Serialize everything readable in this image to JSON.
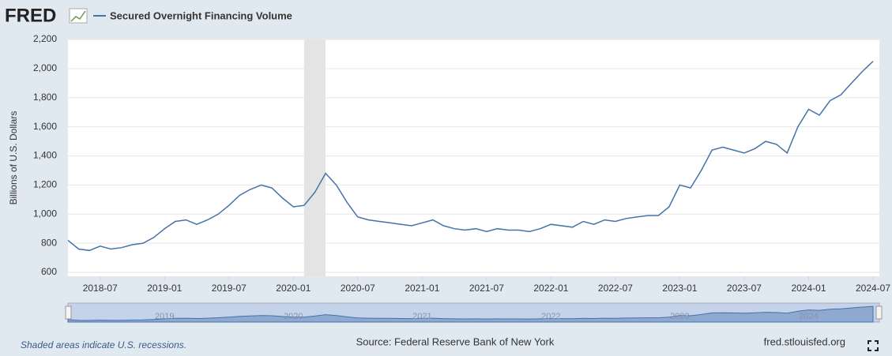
{
  "logo": "FRED",
  "chart_data": {
    "type": "line",
    "y_label": "Billions of U.S. Dollars",
    "x": [
      "2018-04",
      "2018-05",
      "2018-06",
      "2018-07",
      "2018-08",
      "2018-09",
      "2018-10",
      "2018-11",
      "2018-12",
      "2019-01",
      "2019-02",
      "2019-03",
      "2019-04",
      "2019-05",
      "2019-06",
      "2019-07",
      "2019-08",
      "2019-09",
      "2019-10",
      "2019-11",
      "2019-12",
      "2020-01",
      "2020-02",
      "2020-03",
      "2020-04",
      "2020-05",
      "2020-06",
      "2020-07",
      "2020-08",
      "2020-09",
      "2020-10",
      "2020-11",
      "2020-12",
      "2021-01",
      "2021-02",
      "2021-03",
      "2021-04",
      "2021-05",
      "2021-06",
      "2021-07",
      "2021-08",
      "2021-09",
      "2021-10",
      "2021-11",
      "2021-12",
      "2022-01",
      "2022-02",
      "2022-03",
      "2022-04",
      "2022-05",
      "2022-06",
      "2022-07",
      "2022-08",
      "2022-09",
      "2022-10",
      "2022-11",
      "2022-12",
      "2023-01",
      "2023-02",
      "2023-03",
      "2023-04",
      "2023-05",
      "2023-06",
      "2023-07",
      "2023-08",
      "2023-09",
      "2023-10",
      "2023-11",
      "2023-12",
      "2024-01",
      "2024-02",
      "2024-03",
      "2024-04",
      "2024-05",
      "2024-06",
      "2024-07"
    ],
    "series": [
      {
        "name": "Secured Overnight Financing Volume",
        "color": "#4572a7",
        "values": [
          820,
          760,
          750,
          780,
          760,
          770,
          790,
          800,
          840,
          900,
          950,
          960,
          930,
          960,
          1000,
          1060,
          1130,
          1170,
          1200,
          1180,
          1110,
          1050,
          1060,
          1150,
          1280,
          1200,
          1080,
          980,
          960,
          950,
          940,
          930,
          920,
          940,
          960,
          920,
          900,
          890,
          900,
          880,
          900,
          890,
          890,
          880,
          900,
          930,
          920,
          910,
          950,
          930,
          960,
          950,
          970,
          980,
          990,
          990,
          1050,
          1200,
          1180,
          1300,
          1440,
          1460,
          1440,
          1420,
          1450,
          1500,
          1480,
          1420,
          1600,
          1720,
          1680,
          1780,
          1820,
          1900,
          1980,
          2050
        ]
      }
    ],
    "xlim": [
      "2018-04",
      "2024-07"
    ],
    "xticks": [
      "2018-07",
      "2019-01",
      "2019-07",
      "2020-01",
      "2020-07",
      "2021-01",
      "2021-07",
      "2022-01",
      "2022-07",
      "2023-01",
      "2023-07",
      "2024-01",
      "2024-07"
    ],
    "ylim": [
      600,
      2200
    ],
    "yticks": [
      600,
      800,
      {
        "value": 1000,
        "label": "1,000"
      },
      {
        "value": 1200,
        "label": "1,200"
      },
      {
        "value": 1400,
        "label": "1,400"
      },
      {
        "value": 1600,
        "label": "1,600"
      },
      {
        "value": 1800,
        "label": "1,800"
      },
      {
        "value": 2000,
        "label": "2,000"
      },
      {
        "value": 2200,
        "label": "2,200"
      }
    ],
    "grid": true,
    "recessions": [
      {
        "start": "2020-02",
        "end": "2020-04"
      }
    ],
    "navigator_labels": [
      "2019",
      "2020",
      "2021",
      "2022",
      "2023",
      "2024"
    ],
    "recession_note": "Shaded areas indicate U.S. recessions.",
    "source": "Source: Federal Reserve Bank of New York",
    "site": "fred.stlouisfed.org"
  }
}
